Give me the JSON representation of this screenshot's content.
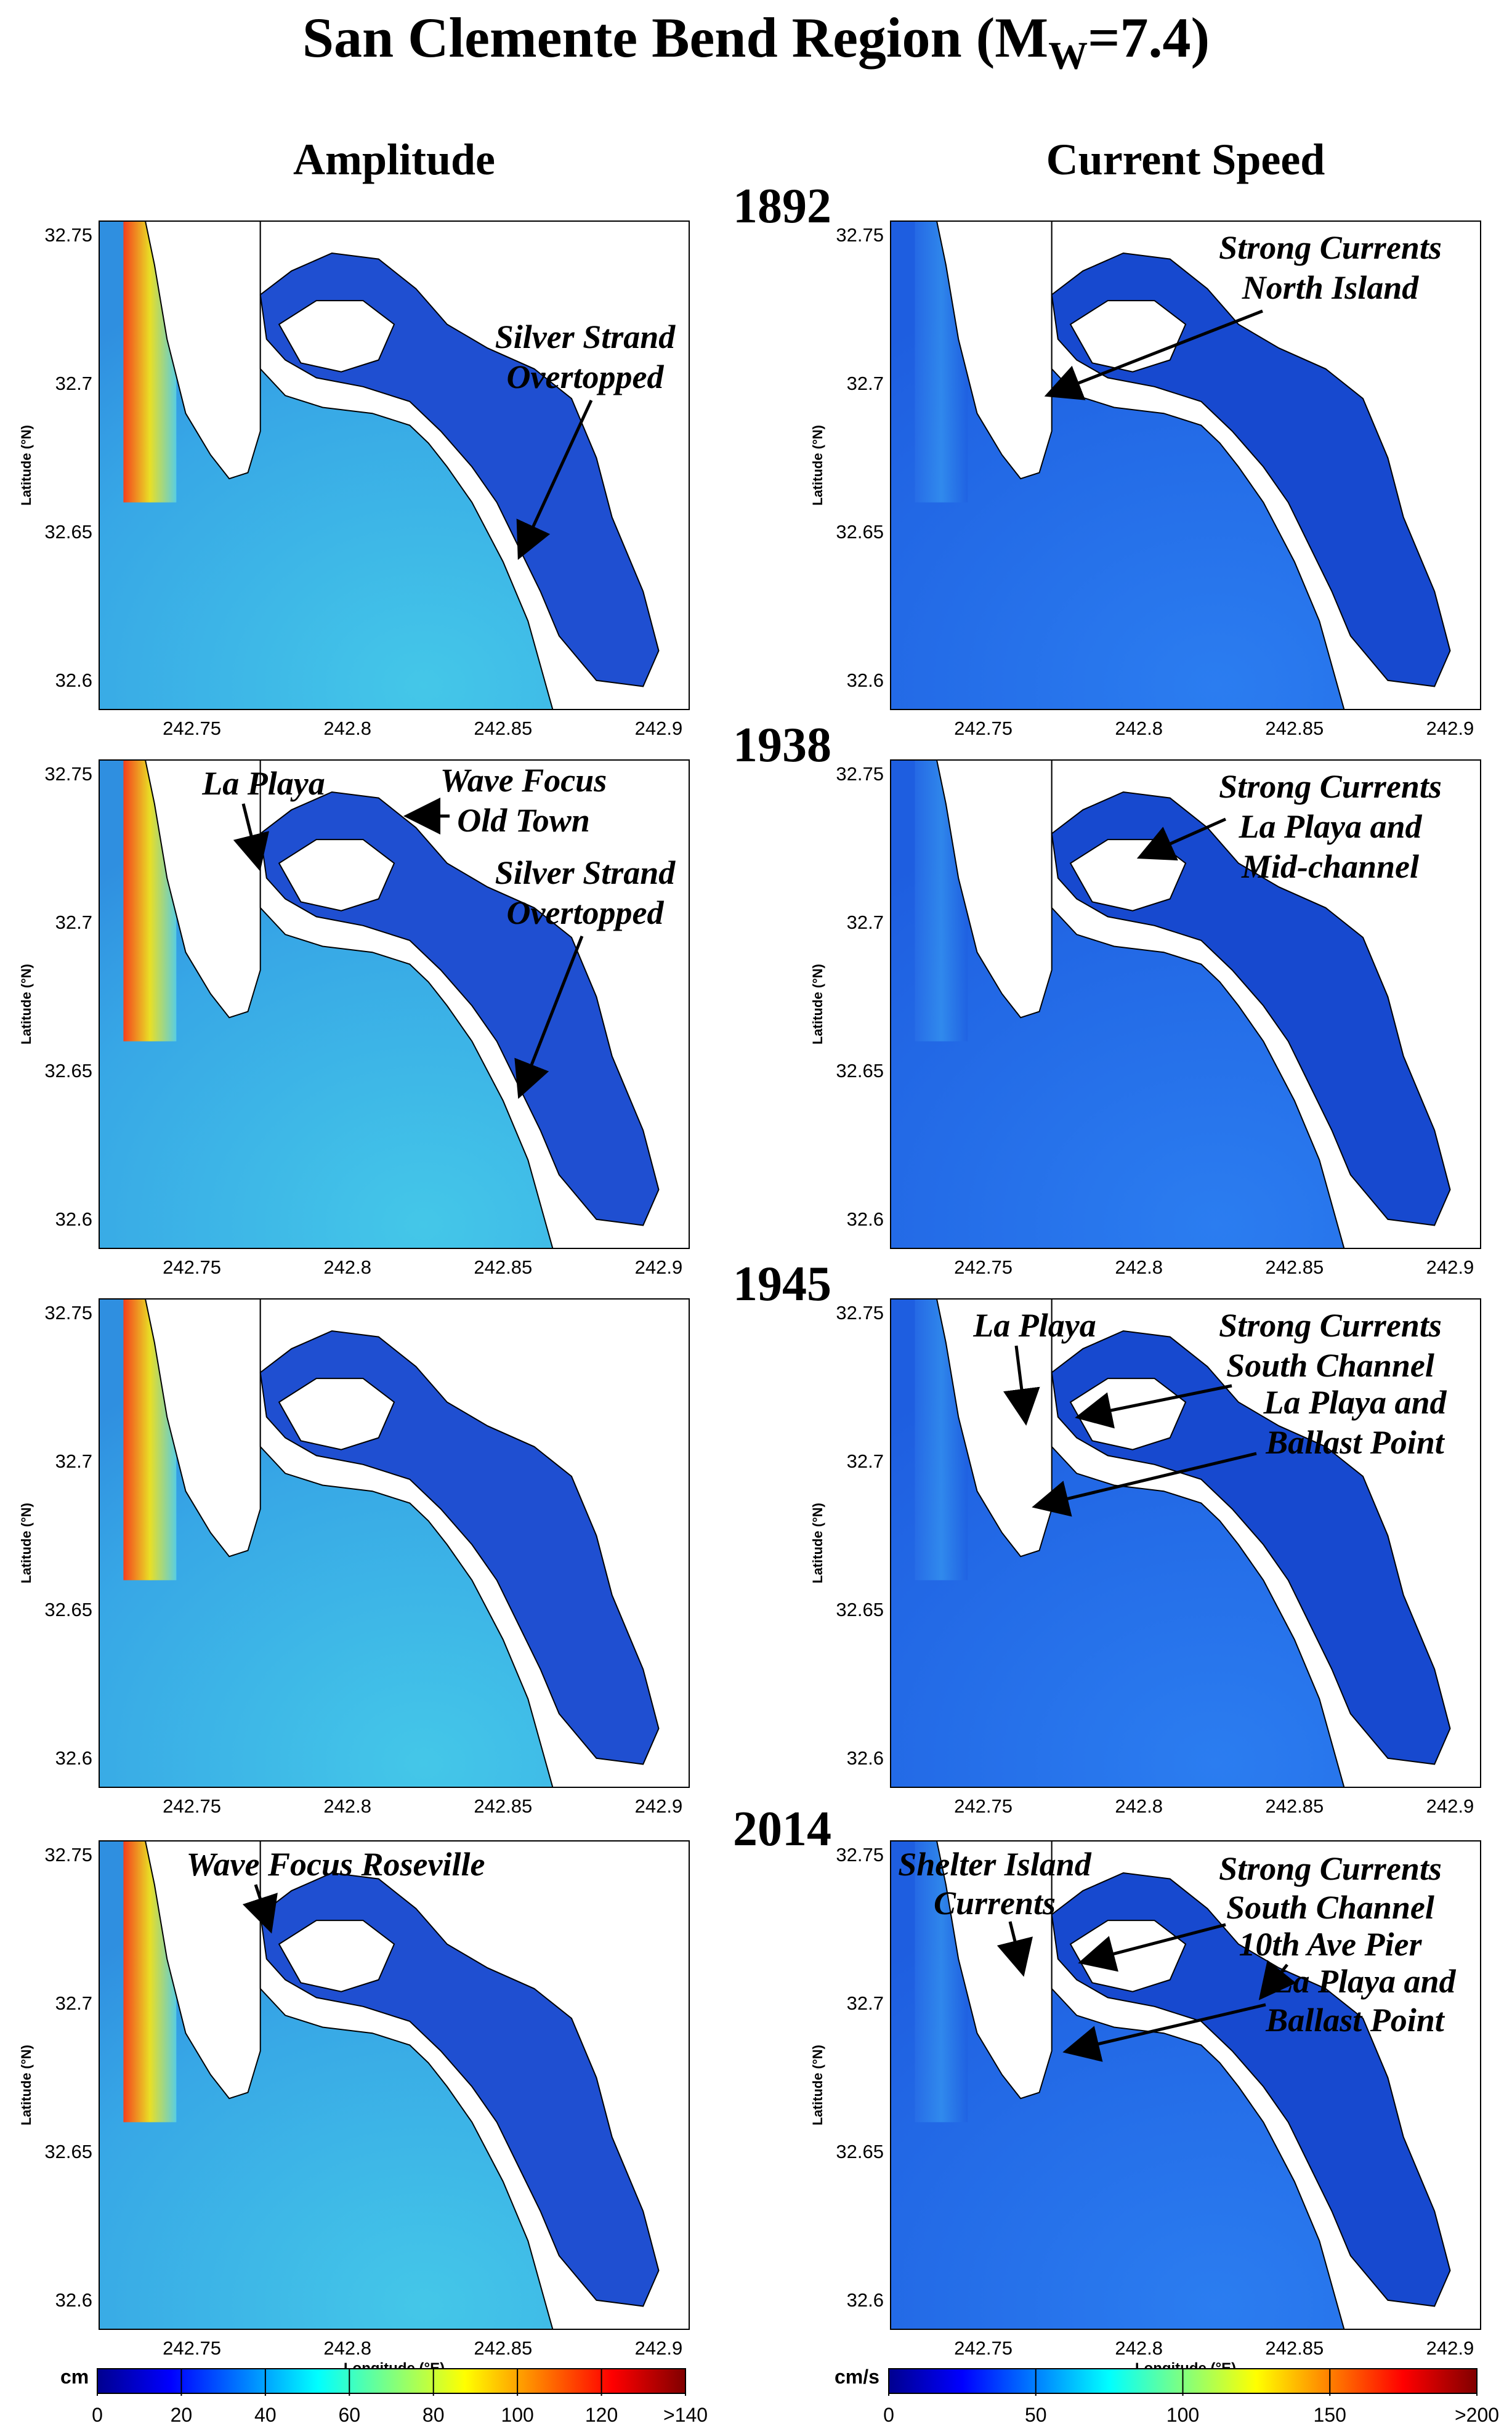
{
  "title": "San Clemente Bend Region (M",
  "title_sub": "W",
  "title_tail": "=7.4)",
  "columns": {
    "amplitude": "Amplitude",
    "current": "Current Speed"
  },
  "years": [
    "1892",
    "1938",
    "1945",
    "2014"
  ],
  "axes": {
    "y_label": "Latitude (°N)",
    "x_label": "Longitude (°E)",
    "y_ticks": [
      "32.75",
      "32.7",
      "32.65",
      "32.6"
    ],
    "x_ticks": [
      "242.75",
      "242.8",
      "242.85",
      "242.9"
    ]
  },
  "colors": {
    "ocean_amp": "#37a7e6",
    "ocean_cur": "#1e5ee0",
    "bay_amp": "#1f4fd1",
    "bay_cur": "#1749cf",
    "coast_hot": "#d81b12",
    "land": "#ffffff"
  },
  "annotations": {
    "r0": {
      "amp": [
        "Silver Strand",
        "Overtopped"
      ],
      "cur": [
        "Strong Currents",
        "North Island"
      ]
    },
    "r1": {
      "amp_a": "La Playa",
      "amp_b": [
        "Wave Focus",
        "Old Town"
      ],
      "amp_c": [
        "Silver Strand",
        "Overtopped"
      ],
      "cur": [
        "Strong Currents",
        "La Playa and",
        "Mid-channel"
      ]
    },
    "r2": {
      "cur_a": "La Playa",
      "cur_b": [
        "Strong Currents",
        "South Channel"
      ],
      "cur_c": [
        "La Playa and",
        "Ballast Point"
      ]
    },
    "r3": {
      "amp": "Wave Focus Roseville",
      "cur_a": [
        "Shelter Island",
        "Currents"
      ],
      "cur_b": [
        "Strong Currents",
        "South Channel"
      ],
      "cur_c": "10th Ave Pier",
      "cur_d": [
        "La Playa and",
        "Ballast Point"
      ]
    }
  },
  "colorbars": {
    "amplitude": {
      "unit": "cm",
      "ticks": [
        "0",
        "20",
        "40",
        "60",
        "80",
        "100",
        "120",
        ">140"
      ]
    },
    "current": {
      "unit": "cm/s",
      "ticks": [
        "0",
        "50",
        "100",
        "150",
        ">200"
      ]
    }
  }
}
